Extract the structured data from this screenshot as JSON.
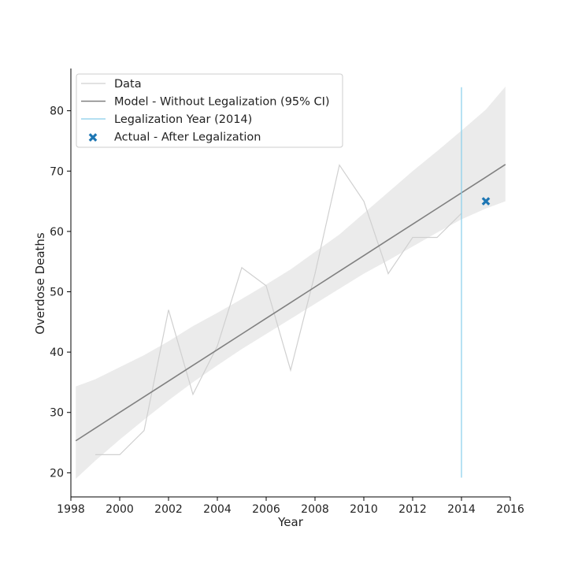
{
  "chart_data": {
    "type": "line",
    "title": "",
    "xlabel": "Year",
    "ylabel": "Overdose Deaths",
    "xlim": [
      1998,
      2016
    ],
    "ylim": [
      16,
      87
    ],
    "x_ticks": [
      1998,
      2000,
      2002,
      2004,
      2006,
      2008,
      2010,
      2012,
      2014,
      2016
    ],
    "y_ticks": [
      20,
      30,
      40,
      50,
      60,
      70,
      80
    ],
    "grid": false,
    "legend_position": "top-left",
    "legend": [
      "Data",
      "Model - Without Legalization (95% CI)",
      "Legalization Year (2014)",
      "Actual - After Legalization"
    ],
    "series": [
      {
        "name": "Data",
        "kind": "line",
        "color": "#d0d0d0",
        "x": [
          1999,
          2000,
          2001,
          2002,
          2003,
          2004,
          2005,
          2006,
          2007,
          2008,
          2009,
          2010,
          2011,
          2012,
          2013,
          2014
        ],
        "y": [
          23,
          23,
          27,
          47,
          33,
          41,
          54,
          51,
          37,
          53,
          71,
          65,
          53,
          59,
          59,
          63
        ]
      },
      {
        "name": "Model - Without Legalization (95% CI)",
        "kind": "line-with-band",
        "color": "#808080",
        "band_color": "#ebebeb",
        "x": [
          1998.2,
          1999,
          2000,
          2001,
          2002,
          2003,
          2004,
          2005,
          2006,
          2007,
          2008,
          2009,
          2010,
          2011,
          2012,
          2013,
          2014,
          2015,
          2015.8
        ],
        "y": [
          25.3,
          27.4,
          30.0,
          32.6,
          35.2,
          37.8,
          40.4,
          43.0,
          45.6,
          48.2,
          50.8,
          53.4,
          56.0,
          58.6,
          61.2,
          63.8,
          66.4,
          69.0,
          71.1
        ],
        "lower": [
          19.0,
          22.0,
          25.5,
          28.8,
          32.0,
          35.0,
          37.8,
          40.5,
          43.0,
          45.5,
          48.0,
          50.5,
          53.0,
          55.2,
          57.5,
          59.8,
          62.0,
          63.8,
          65.0
        ],
        "upper": [
          34.3,
          35.5,
          37.5,
          39.5,
          41.8,
          44.3,
          46.5,
          48.8,
          51.2,
          53.7,
          56.6,
          59.5,
          63.0,
          66.5,
          70.0,
          73.3,
          76.7,
          80.2,
          84.0
        ]
      },
      {
        "name": "Legalization Year (2014)",
        "kind": "vline",
        "color": "#87ceeb",
        "x": 2014,
        "y_range": [
          19.2,
          83.9
        ]
      },
      {
        "name": "Actual - After Legalization",
        "kind": "scatter",
        "marker": "x",
        "color": "#1f77b4",
        "x": [
          2015
        ],
        "y": [
          65
        ]
      }
    ]
  }
}
